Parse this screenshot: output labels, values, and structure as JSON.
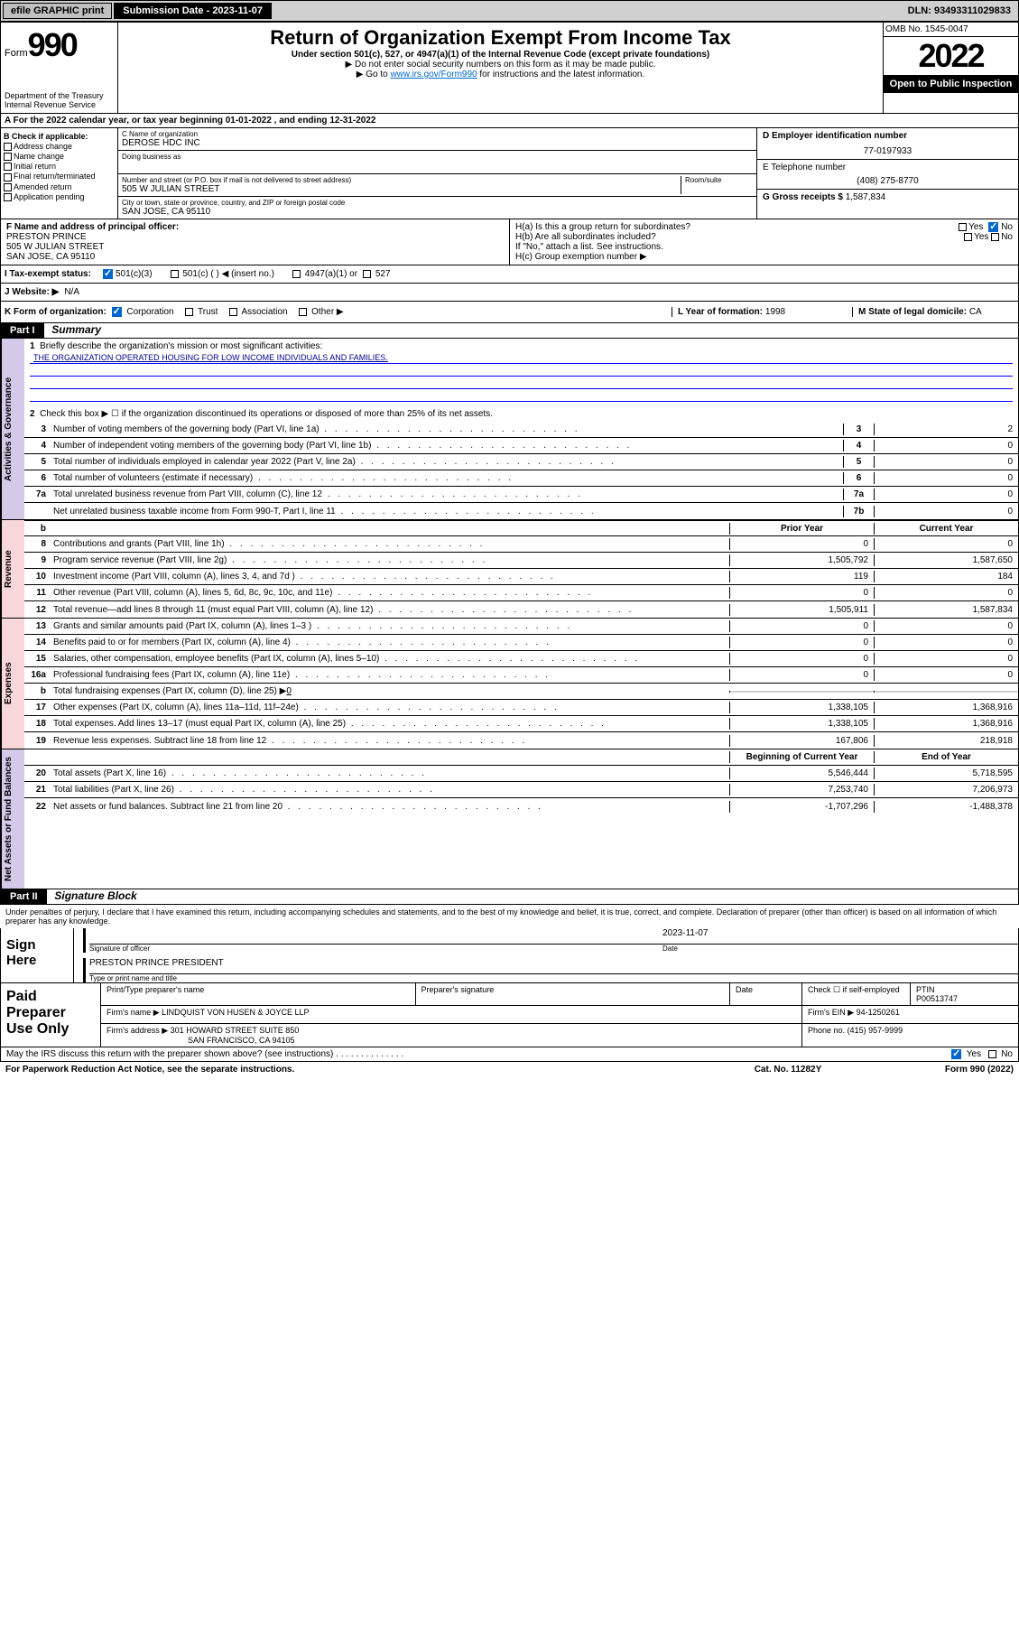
{
  "topbar": {
    "efile": "efile GRAPHIC print",
    "submission_label": "Submission Date - 2023-11-07",
    "dln": "DLN: 93493311029833"
  },
  "header": {
    "form_label": "Form",
    "form_number": "990",
    "dept": "Department of the Treasury",
    "irs": "Internal Revenue Service",
    "title": "Return of Organization Exempt From Income Tax",
    "under_section": "Under section 501(c), 527, or 4947(a)(1) of the Internal Revenue Code (except private foundations)",
    "ssn_note": "▶ Do not enter social security numbers on this form as it may be made public.",
    "goto": "▶ Go to ",
    "goto_link": "www.irs.gov/Form990",
    "goto_suffix": " for instructions and the latest information.",
    "omb": "OMB No. 1545-0047",
    "tax_year": "2022",
    "open_public": "Open to Public Inspection"
  },
  "section_a": {
    "tax_year_text": "A For the 2022 calendar year, or tax year beginning 01-01-2022    , and ending 12-31-2022"
  },
  "section_b": {
    "check_label": "B Check if applicable:",
    "opts": [
      "Address change",
      "Name change",
      "Initial return",
      "Final return/terminated",
      "Amended return",
      "Application pending"
    ]
  },
  "section_c": {
    "name_label": "C Name of organization",
    "name": "DEROSE HDC INC",
    "dba_label": "Doing business as",
    "dba": "",
    "addr_label": "Number and street (or P.O. box if mail is not delivered to street address)",
    "room_label": "Room/suite",
    "addr": "505 W JULIAN STREET",
    "city_label": "City or town, state or province, country, and ZIP or foreign postal code",
    "city": "SAN JOSE, CA  95110"
  },
  "section_d": {
    "ein_label": "D Employer identification number",
    "ein": "77-0197933",
    "phone_label": "E Telephone number",
    "phone": "(408) 275-8770",
    "gross_label": "G Gross receipts $ ",
    "gross": "1,587,834"
  },
  "section_f": {
    "label": "F Name and address of principal officer:",
    "name": "PRESTON PRINCE",
    "addr1": "505 W JULIAN STREET",
    "addr2": "SAN JOSE, CA  95110"
  },
  "section_h": {
    "ha": "H(a)  Is this a group return for subordinates?",
    "ha_yes": "Yes",
    "ha_no": "No",
    "hb": "H(b)  Are all subordinates included?",
    "hb_note": "If \"No,\" attach a list. See instructions.",
    "hc": "H(c)  Group exemption number ▶"
  },
  "section_i": {
    "label": "I    Tax-exempt status:",
    "c3": "501(c)(3)",
    "c": "501(c) (   ) ◀ (insert no.)",
    "a4947": "4947(a)(1) or",
    "s527": "527"
  },
  "section_j": {
    "label": "J   Website: ▶",
    "val": "N/A"
  },
  "section_k": {
    "label": "K Form of organization:",
    "corp": "Corporation",
    "trust": "Trust",
    "assoc": "Association",
    "other": "Other ▶"
  },
  "section_l": {
    "label": "L Year of formation: ",
    "val": "1998"
  },
  "section_m": {
    "label": "M State of legal domicile: ",
    "val": "CA"
  },
  "part1": {
    "bar": "Part I",
    "title": "Summary",
    "line1": "Briefly describe the organization's mission or most significant activities:",
    "mission": "THE ORGANIZATION OPERATED HOUSING FOR LOW INCOME INDIVIDUALS AND FAMILIES.",
    "line2": "Check this box ▶ ☐  if the organization discontinued its operations or disposed of more than 25% of its net assets.",
    "rows": [
      {
        "n": "3",
        "label": "Number of voting members of the governing body (Part VI, line 1a)",
        "cell": "3",
        "v": "2"
      },
      {
        "n": "4",
        "label": "Number of independent voting members of the governing body (Part VI, line 1b)",
        "cell": "4",
        "v": "0"
      },
      {
        "n": "5",
        "label": "Total number of individuals employed in calendar year 2022 (Part V, line 2a)",
        "cell": "5",
        "v": "0"
      },
      {
        "n": "6",
        "label": "Total number of volunteers (estimate if necessary)",
        "cell": "6",
        "v": "0"
      },
      {
        "n": "7a",
        "label": "Total unrelated business revenue from Part VIII, column (C), line 12",
        "cell": "7a",
        "v": "0"
      },
      {
        "n": "",
        "label": "Net unrelated business taxable income from Form 990-T, Part I, line 11",
        "cell": "7b",
        "v": "0"
      }
    ],
    "col_prior": "Prior Year",
    "col_current": "Current Year",
    "revenue_rows": [
      {
        "n": "8",
        "label": "Contributions and grants (Part VIII, line 1h)",
        "p": "0",
        "c": "0"
      },
      {
        "n": "9",
        "label": "Program service revenue (Part VIII, line 2g)",
        "p": "1,505,792",
        "c": "1,587,650"
      },
      {
        "n": "10",
        "label": "Investment income (Part VIII, column (A), lines 3, 4, and 7d )",
        "p": "119",
        "c": "184"
      },
      {
        "n": "11",
        "label": "Other revenue (Part VIII, column (A), lines 5, 6d, 8c, 9c, 10c, and 11e)",
        "p": "0",
        "c": "0"
      },
      {
        "n": "12",
        "label": "Total revenue—add lines 8 through 11 (must equal Part VIII, column (A), line 12)",
        "p": "1,505,911",
        "c": "1,587,834"
      }
    ],
    "expense_rows": [
      {
        "n": "13",
        "label": "Grants and similar amounts paid (Part IX, column (A), lines 1–3 )",
        "p": "0",
        "c": "0"
      },
      {
        "n": "14",
        "label": "Benefits paid to or for members (Part IX, column (A), line 4)",
        "p": "0",
        "c": "0"
      },
      {
        "n": "15",
        "label": "Salaries, other compensation, employee benefits (Part IX, column (A), lines 5–10)",
        "p": "0",
        "c": "0"
      },
      {
        "n": "16a",
        "label": "Professional fundraising fees (Part IX, column (A), line 11e)",
        "p": "0",
        "c": "0"
      }
    ],
    "line16b": "Total fundraising expenses (Part IX, column (D), line 25) ▶",
    "line16b_val": "0",
    "expense_rows2": [
      {
        "n": "17",
        "label": "Other expenses (Part IX, column (A), lines 11a–11d, 11f–24e)",
        "p": "1,338,105",
        "c": "1,368,916"
      },
      {
        "n": "18",
        "label": "Total expenses. Add lines 13–17 (must equal Part IX, column (A), line 25)",
        "p": "1,338,105",
        "c": "1,368,916"
      },
      {
        "n": "19",
        "label": "Revenue less expenses. Subtract line 18 from line 12",
        "p": "167,806",
        "c": "218,918"
      }
    ],
    "col_begin": "Beginning of Current Year",
    "col_end": "End of Year",
    "net_rows": [
      {
        "n": "20",
        "label": "Total assets (Part X, line 16)",
        "p": "5,546,444",
        "c": "5,718,595"
      },
      {
        "n": "21",
        "label": "Total liabilities (Part X, line 26)",
        "p": "7,253,740",
        "c": "7,206,973"
      },
      {
        "n": "22",
        "label": "Net assets or fund balances. Subtract line 21 from line 20",
        "p": "-1,707,296",
        "c": "-1,488,378"
      }
    ]
  },
  "part2": {
    "bar": "Part II",
    "title": "Signature Block",
    "declaration": "Under penalties of perjury, I declare that I have examined this return, including accompanying schedules and statements, and to the best of my knowledge and belief, it is true, correct, and complete. Declaration of preparer (other than officer) is based on all information of which preparer has any knowledge.",
    "sign_here": "Sign Here",
    "sig_officer": "Signature of officer",
    "sig_date": "2023-11-07",
    "date_label": "Date",
    "officer_name": "PRESTON PRINCE PRESIDENT",
    "type_name": "Type or print name and title",
    "paid_prep": "Paid Preparer Use Only",
    "prep_name_h": "Print/Type preparer's name",
    "prep_sig_h": "Preparer's signature",
    "prep_date_h": "Date",
    "check_self": "Check ☐ if self-employed",
    "ptin_h": "PTIN",
    "ptin": "P00513747",
    "firm_name_l": "Firm's name    ▶",
    "firm_name": "LINDQUIST VON HUSEN & JOYCE LLP",
    "firm_ein_l": "Firm's EIN ▶",
    "firm_ein": "94-1250261",
    "firm_addr_l": "Firm's address ▶",
    "firm_addr1": "301 HOWARD STREET SUITE 850",
    "firm_addr2": "SAN FRANCISCO, CA  94105",
    "phone_l": "Phone no.",
    "phone": "(415) 957-9999",
    "may_irs": "May the IRS discuss this return with the preparer shown above? (see instructions)",
    "yes": "Yes",
    "no": "No"
  },
  "footer": {
    "paperwork": "For Paperwork Reduction Act Notice, see the separate instructions.",
    "cat": "Cat. No. 11282Y",
    "form": "Form 990 (2022)"
  },
  "vtabs": {
    "gov": "Activities & Governance",
    "rev": "Revenue",
    "exp": "Expenses",
    "net": "Net Assets or Fund Balances"
  }
}
